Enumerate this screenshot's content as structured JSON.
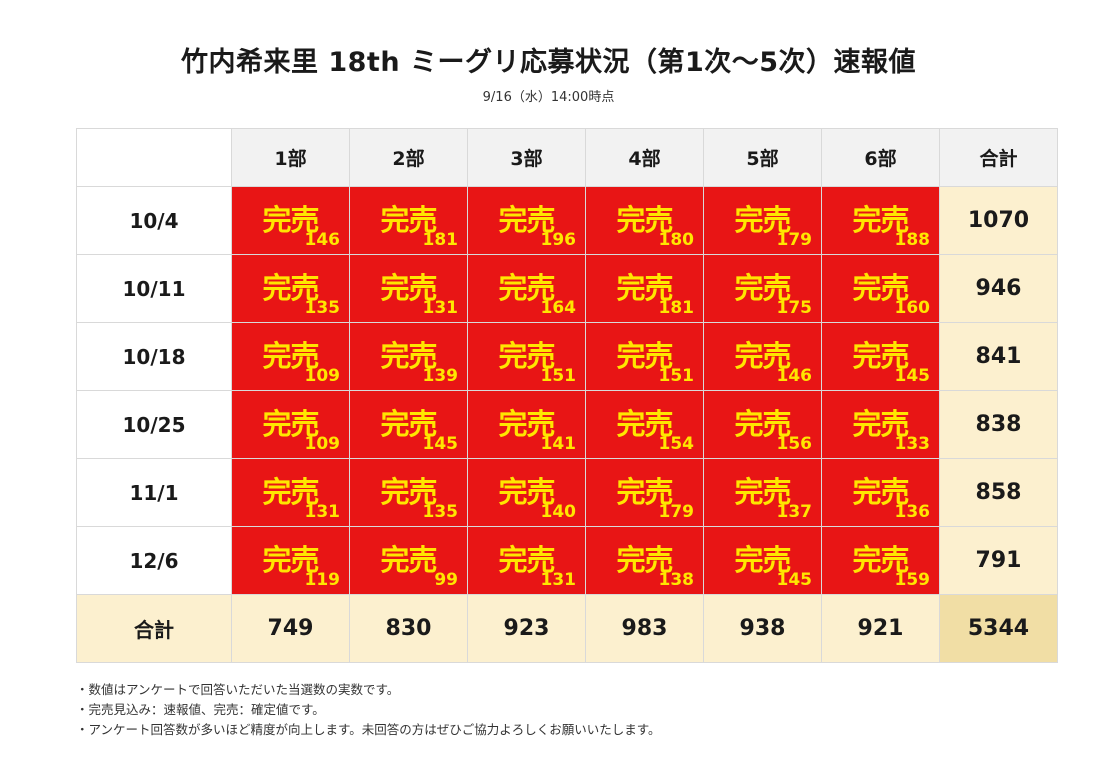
{
  "title": "竹内希来里 18th ミーグリ応募状況（第1次〜5次）速報値",
  "subtitle": "9/16（水）14:00時点",
  "chart_data": {
    "type": "table",
    "columns": [
      "1部",
      "2部",
      "3部",
      "4部",
      "5部",
      "6部"
    ],
    "total_label": "合計",
    "status_label": "完売",
    "rows": [
      {
        "date": "10/4",
        "values": [
          146,
          181,
          196,
          180,
          179,
          188
        ],
        "total": 1070
      },
      {
        "date": "10/11",
        "values": [
          135,
          131,
          164,
          181,
          175,
          160
        ],
        "total": 946
      },
      {
        "date": "10/18",
        "values": [
          109,
          139,
          151,
          151,
          146,
          145
        ],
        "total": 841
      },
      {
        "date": "10/25",
        "values": [
          109,
          145,
          141,
          154,
          156,
          133
        ],
        "total": 838
      },
      {
        "date": "11/1",
        "values": [
          131,
          135,
          140,
          179,
          137,
          136
        ],
        "total": 858
      },
      {
        "date": "12/6",
        "values": [
          119,
          99,
          131,
          138,
          145,
          159
        ],
        "total": 791
      }
    ],
    "column_totals": [
      749,
      830,
      923,
      983,
      938,
      921
    ],
    "grand_total": 5344
  },
  "colors": {
    "soldout_cell": "#e81515",
    "soldout_text": "#ffe600",
    "total_bg": "#fcf0cf",
    "grand_total_bg": "#f1dea5",
    "header_bg": "#f2f2f2"
  },
  "notes": [
    "・数値はアンケートで回答いただいた当選数の実数です。",
    "・完売見込み：速報値、完売：確定値です。",
    "・アンケート回答数が多いほど精度が向上します。未回答の方はぜひご協力よろしくお願いいたします。"
  ]
}
